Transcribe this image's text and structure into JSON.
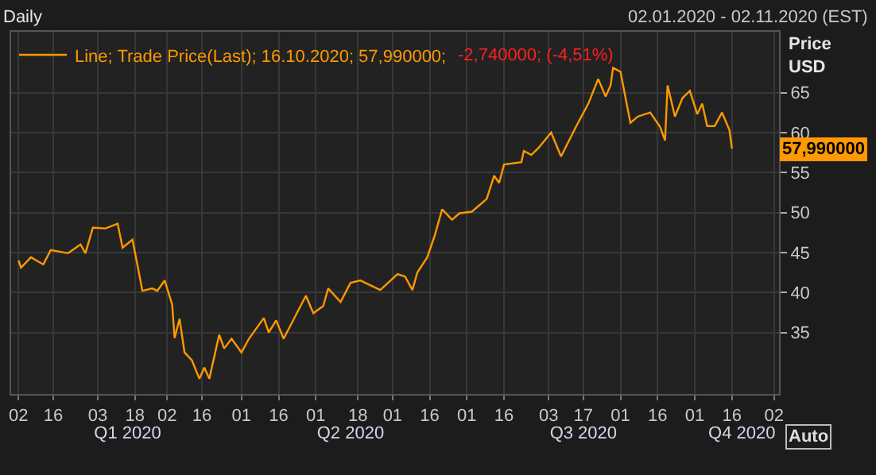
{
  "chart_data": {
    "type": "line",
    "title": "Daily",
    "subtitle": "02.01.2020 - 02.11.2020 (EST)",
    "ylabel": "Price\nUSD",
    "x": [
      "2020-01-02",
      "2020-01-03",
      "2020-01-07",
      "2020-01-12",
      "2020-01-15",
      "2020-01-22",
      "2020-01-27",
      "2020-01-29",
      "2020-02-01",
      "2020-02-06",
      "2020-02-11",
      "2020-02-13",
      "2020-02-17",
      "2020-02-21",
      "2020-02-25",
      "2020-02-27",
      "2020-03-01",
      "2020-03-04",
      "2020-03-05",
      "2020-03-07",
      "2020-03-09",
      "2020-03-12",
      "2020-03-15",
      "2020-03-17",
      "2020-03-19",
      "2020-03-23",
      "2020-03-25",
      "2020-03-28",
      "2020-04-01",
      "2020-04-04",
      "2020-04-10",
      "2020-04-12",
      "2020-04-15",
      "2020-04-18",
      "2020-04-27",
      "2020-04-30",
      "2020-05-04",
      "2020-05-06",
      "2020-05-11",
      "2020-05-15",
      "2020-05-19",
      "2020-05-27",
      "2020-06-03",
      "2020-06-06",
      "2020-06-09",
      "2020-06-11",
      "2020-06-15",
      "2020-06-18",
      "2020-06-21",
      "2020-06-25",
      "2020-06-28",
      "2020-07-03",
      "2020-07-09",
      "2020-07-12",
      "2020-07-14",
      "2020-07-16",
      "2020-07-23",
      "2020-07-24",
      "2020-07-27",
      "2020-07-30",
      "2020-08-04",
      "2020-08-08",
      "2020-08-14",
      "2020-08-19",
      "2020-08-23",
      "2020-08-26",
      "2020-08-28",
      "2020-08-29",
      "2020-09-01",
      "2020-09-05",
      "2020-09-08",
      "2020-09-13",
      "2020-09-17",
      "2020-09-19",
      "2020-09-20",
      "2020-09-23",
      "2020-09-26",
      "2020-09-29",
      "2020-10-02",
      "2020-10-04",
      "2020-10-06",
      "2020-10-09",
      "2020-10-12",
      "2020-10-15",
      "2020-10-16"
    ],
    "series": [
      {
        "name": "Line; Trade Price(Last); 16.10.2020; 57,990000;",
        "color": "#ff9900",
        "values": [
          44.0,
          43.1,
          44.4,
          43.5,
          45.3,
          44.9,
          46.0,
          44.9,
          48.1,
          48.0,
          48.6,
          45.6,
          46.6,
          40.2,
          40.5,
          40.2,
          41.5,
          38.5,
          34.3,
          36.7,
          32.5,
          31.5,
          29.2,
          30.6,
          29.2,
          34.7,
          33.0,
          34.2,
          32.5,
          34.2,
          36.8,
          35.0,
          36.5,
          34.2,
          39.6,
          37.4,
          38.3,
          40.5,
          38.8,
          41.2,
          41.5,
          40.3,
          42.3,
          42.0,
          40.3,
          42.5,
          44.4,
          47.1,
          50.4,
          49.1,
          49.9,
          50.1,
          51.7,
          54.6,
          53.7,
          56.0,
          56.3,
          57.7,
          57.2,
          58.1,
          60.0,
          57.0,
          60.7,
          63.6,
          66.7,
          64.5,
          65.9,
          68.1,
          67.6,
          61.2,
          62.0,
          62.5,
          60.7,
          59.0,
          65.9,
          62.0,
          64.3,
          65.2,
          62.3,
          63.6,
          60.8,
          60.8,
          62.5,
          60.3,
          57.99
        ]
      }
    ],
    "xlim": [
      "2019-12-30",
      "2020-11-04"
    ],
    "xticks": [
      {
        "value": "2020-01-02",
        "label": "02"
      },
      {
        "value": "2020-01-16",
        "label": "16"
      },
      {
        "value": "2020-02-03",
        "label": "03"
      },
      {
        "value": "2020-02-18",
        "label": "18"
      },
      {
        "value": "2020-03-02",
        "label": "02"
      },
      {
        "value": "2020-03-16",
        "label": "16"
      },
      {
        "value": "2020-04-01",
        "label": "01"
      },
      {
        "value": "2020-04-16",
        "label": "16"
      },
      {
        "value": "2020-05-01",
        "label": "01"
      },
      {
        "value": "2020-05-18",
        "label": "18"
      },
      {
        "value": "2020-06-01",
        "label": "01"
      },
      {
        "value": "2020-06-16",
        "label": "16"
      },
      {
        "value": "2020-07-01",
        "label": "01"
      },
      {
        "value": "2020-07-16",
        "label": "16"
      },
      {
        "value": "2020-08-03",
        "label": "03"
      },
      {
        "value": "2020-08-17",
        "label": "17"
      },
      {
        "value": "2020-09-01",
        "label": "01"
      },
      {
        "value": "2020-09-16",
        "label": "16"
      },
      {
        "value": "2020-10-01",
        "label": "01"
      },
      {
        "value": "2020-10-16",
        "label": "16"
      },
      {
        "value": "2020-11-02",
        "label": "02"
      }
    ],
    "x2lim": [
      "2019-12-30",
      "2020-11-04"
    ],
    "x2ticks": [
      {
        "value": "2020-02-15",
        "label": "Q1 2020"
      },
      {
        "value": "2020-05-15",
        "label": "Q2 2020"
      },
      {
        "value": "2020-08-17",
        "label": "Q3 2020"
      },
      {
        "value": "2020-10-20",
        "label": "Q4 2020"
      }
    ],
    "ylim": [
      27.3,
      72.6
    ],
    "yticks": [
      35,
      40,
      45,
      50,
      55,
      60,
      65
    ],
    "grid": true,
    "legend": "top left",
    "marker": "none",
    "line_style": "solid",
    "annotations": [
      "-2,740000; (-4,51%)",
      {
        "text": "57,990000",
        "x": "2020-10-16",
        "y": 57.99
      },
      "Auto"
    ]
  }
}
